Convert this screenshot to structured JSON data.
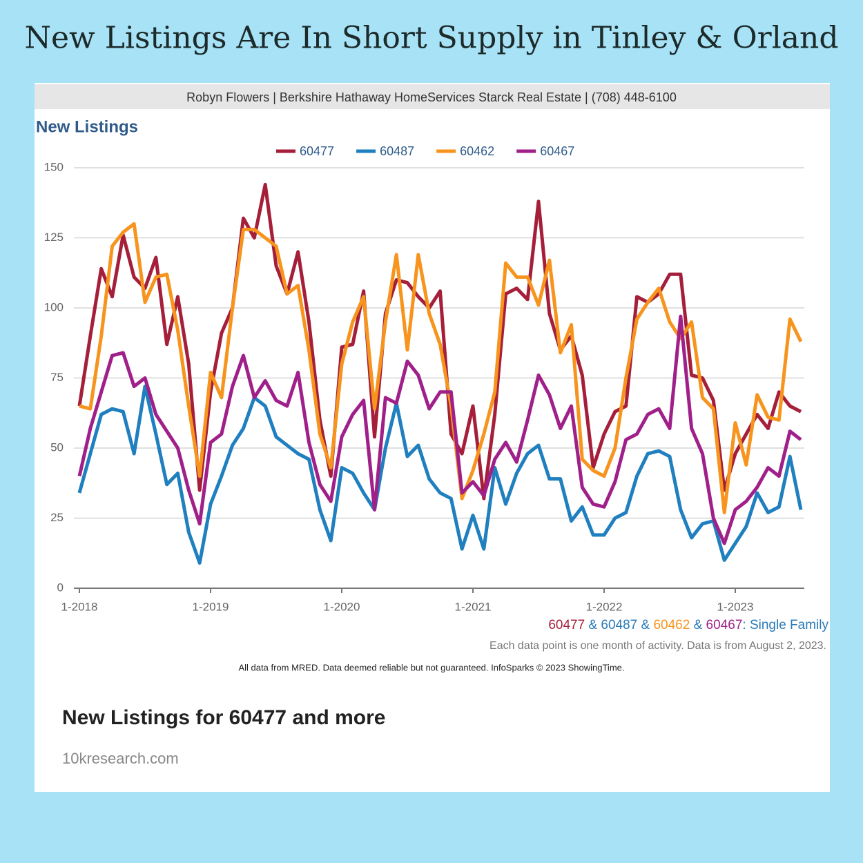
{
  "page_title": "New Listings Are In Short Supply in Tinley & Orland",
  "header": "Robyn Flowers | Berkshire Hathaway HomeServices Starck Real Estate | (708) 448-6100",
  "caption_parts": [
    {
      "text": "60477",
      "color": "#a51f3a"
    },
    {
      "text": " & ",
      "color": "#2a7ab8"
    },
    {
      "text": "60487",
      "color": "#2a7ab8"
    },
    {
      "text": " & ",
      "color": "#2a7ab8"
    },
    {
      "text": "60462",
      "color": "#f7941d"
    },
    {
      "text": " & ",
      "color": "#2a7ab8"
    },
    {
      "text": "60467",
      "color": "#a0208a"
    },
    {
      "text": ": Single Family",
      "color": "#2a7ab8"
    }
  ],
  "note": "Each data point is one month of activity. Data is from August 2, 2023.",
  "source": "All data from MRED. Data deemed reliable but not guaranteed. InfoSparks © 2023 ShowingTime.",
  "card_title": "New Listings for 60477 and more",
  "card_site": "10kresearch.com",
  "chart_data": {
    "type": "line",
    "title": "New Listings",
    "categories": [
      "1-2018",
      null,
      null,
      null,
      null,
      null,
      null,
      null,
      null,
      null,
      null,
      null,
      "1-2019",
      null,
      null,
      null,
      null,
      null,
      null,
      null,
      null,
      null,
      null,
      null,
      "1-2020",
      null,
      null,
      null,
      null,
      null,
      null,
      null,
      null,
      null,
      null,
      null,
      "1-2021",
      null,
      null,
      null,
      null,
      null,
      null,
      null,
      null,
      null,
      null,
      null,
      "1-2022",
      null,
      null,
      null,
      null,
      null,
      null,
      null,
      null,
      null,
      null,
      null,
      "1-2023",
      null,
      null,
      null,
      null,
      null,
      null
    ],
    "series": [
      {
        "name": "60477",
        "color": "#a51f3a",
        "values": [
          65,
          90,
          114,
          104,
          126,
          111,
          107,
          118,
          87,
          104,
          80,
          35,
          70,
          91,
          100,
          132,
          125,
          144,
          115,
          105,
          120,
          95,
          60,
          40,
          86,
          87,
          106,
          54,
          98,
          110,
          109,
          104,
          100,
          106,
          55,
          48,
          65,
          32,
          62,
          105,
          107,
          103,
          138,
          98,
          85,
          90,
          76,
          43,
          55,
          63,
          65,
          104,
          102,
          105,
          112,
          112,
          76,
          75,
          67,
          35,
          48,
          55,
          62,
          57,
          70,
          65,
          63
        ]
      },
      {
        "name": "60487",
        "color": "#1f7fbf",
        "values": [
          34,
          48,
          62,
          64,
          63,
          48,
          72,
          55,
          37,
          41,
          20,
          9,
          30,
          40,
          51,
          57,
          68,
          65,
          54,
          51,
          48,
          46,
          28,
          17,
          43,
          41,
          34,
          28,
          50,
          66,
          47,
          51,
          39,
          34,
          32,
          14,
          26,
          14,
          43,
          30,
          41,
          48,
          51,
          39,
          39,
          24,
          29,
          19,
          19,
          25,
          27,
          40,
          48,
          49,
          47,
          28,
          18,
          23,
          24,
          10,
          16,
          22,
          34,
          27,
          29,
          47,
          28
        ]
      },
      {
        "name": "60462",
        "color": "#f7941d",
        "values": [
          65,
          64,
          90,
          122,
          127,
          130,
          102,
          111,
          112,
          92,
          65,
          40,
          77,
          68,
          100,
          128,
          128,
          125,
          122,
          105,
          108,
          85,
          55,
          43,
          80,
          95,
          104,
          64,
          95,
          119,
          85,
          119,
          98,
          87,
          65,
          32,
          42,
          55,
          70,
          116,
          111,
          111,
          101,
          117,
          84,
          94,
          46,
          42,
          40,
          50,
          75,
          96,
          102,
          107,
          95,
          89,
          95,
          68,
          64,
          27,
          59,
          44,
          69,
          61,
          60,
          96,
          88
        ]
      },
      {
        "name": "60467",
        "color": "#a0208a",
        "values": [
          40,
          57,
          70,
          83,
          84,
          72,
          75,
          62,
          56,
          50,
          35,
          23,
          52,
          55,
          72,
          83,
          68,
          74,
          67,
          65,
          77,
          52,
          37,
          31,
          54,
          62,
          67,
          28,
          68,
          66,
          81,
          76,
          64,
          70,
          70,
          34,
          38,
          33,
          46,
          52,
          45,
          60,
          76,
          69,
          57,
          65,
          36,
          30,
          29,
          38,
          53,
          55,
          62,
          64,
          57,
          97,
          57,
          48,
          25,
          16,
          28,
          31,
          36,
          43,
          40,
          56,
          53
        ]
      }
    ],
    "ylim": [
      0,
      150
    ],
    "yticks": [
      0,
      25,
      50,
      75,
      100,
      125,
      150
    ],
    "grid": true
  }
}
